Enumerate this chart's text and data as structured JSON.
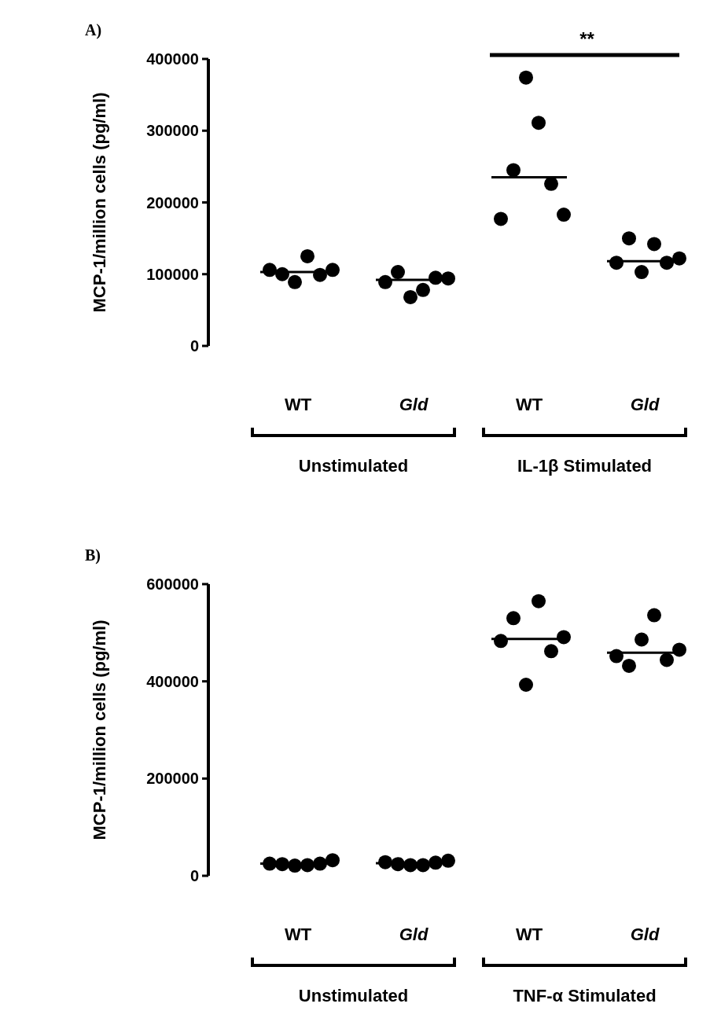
{
  "chart_data": [
    {
      "type": "scatter",
      "title": "A)",
      "ylabel": "MCP-1/million cells (pg/ml)",
      "categories": [
        "WT",
        "Gld",
        "WT",
        "Gld"
      ],
      "ylim": [
        0,
        400000
      ],
      "yticks": [
        0,
        100000,
        200000,
        300000,
        400000
      ],
      "marker": "circle",
      "grid": false,
      "series": [
        {
          "color": "#000000",
          "values": [
            106000,
            89000,
            177000,
            116000
          ]
        },
        {
          "color": "#000000",
          "values": [
            100000,
            103000,
            245000,
            150000
          ]
        },
        {
          "color": "#000000",
          "values": [
            89000,
            68000,
            374000,
            103000
          ]
        },
        {
          "color": "#000000",
          "values": [
            125000,
            78000,
            311000,
            142000
          ]
        },
        {
          "color": "#000000",
          "values": [
            99000,
            95000,
            226000,
            116000
          ]
        },
        {
          "color": "#000000",
          "values": [
            106000,
            94000,
            183000,
            122000
          ]
        }
      ],
      "ref_lines": [
        {
          "axis": "y",
          "value": 103000,
          "color": "#000000"
        },
        {
          "axis": "y",
          "value": 92000,
          "color": "#000000"
        },
        {
          "axis": "y",
          "value": 235000,
          "color": "#000000"
        },
        {
          "axis": "y",
          "value": 118000,
          "color": "#000000"
        }
      ],
      "annotations": [
        "**",
        "Unstimulated",
        "IL-1β Stimulated"
      ]
    },
    {
      "type": "scatter",
      "title": "B)",
      "ylabel": "MCP-1/million cells (pg/ml)",
      "categories": [
        "WT",
        "Gld",
        "WT",
        "Gld"
      ],
      "ylim": [
        0,
        600000
      ],
      "yticks": [
        0,
        200000,
        400000,
        600000
      ],
      "marker": "circle",
      "grid": false,
      "series": [
        {
          "color": "#000000",
          "values": [
            25000,
            28000,
            483000,
            452000
          ]
        },
        {
          "color": "#000000",
          "values": [
            24000,
            24000,
            530000,
            432000
          ]
        },
        {
          "color": "#000000",
          "values": [
            21000,
            22000,
            393000,
            486000
          ]
        },
        {
          "color": "#000000",
          "values": [
            22000,
            22000,
            565000,
            536000
          ]
        },
        {
          "color": "#000000",
          "values": [
            25000,
            27000,
            462000,
            444000
          ]
        },
        {
          "color": "#000000",
          "values": [
            32000,
            31000,
            491000,
            465000
          ]
        }
      ],
      "ref_lines": [
        {
          "axis": "y",
          "value": 25000,
          "color": "#000000"
        },
        {
          "axis": "y",
          "value": 26000,
          "color": "#000000"
        },
        {
          "axis": "y",
          "value": 487000,
          "color": "#000000"
        },
        {
          "axis": "y",
          "value": 459000,
          "color": "#000000"
        }
      ],
      "annotations": [
        "Unstimulated",
        "TNF-α Stimulated"
      ]
    }
  ]
}
